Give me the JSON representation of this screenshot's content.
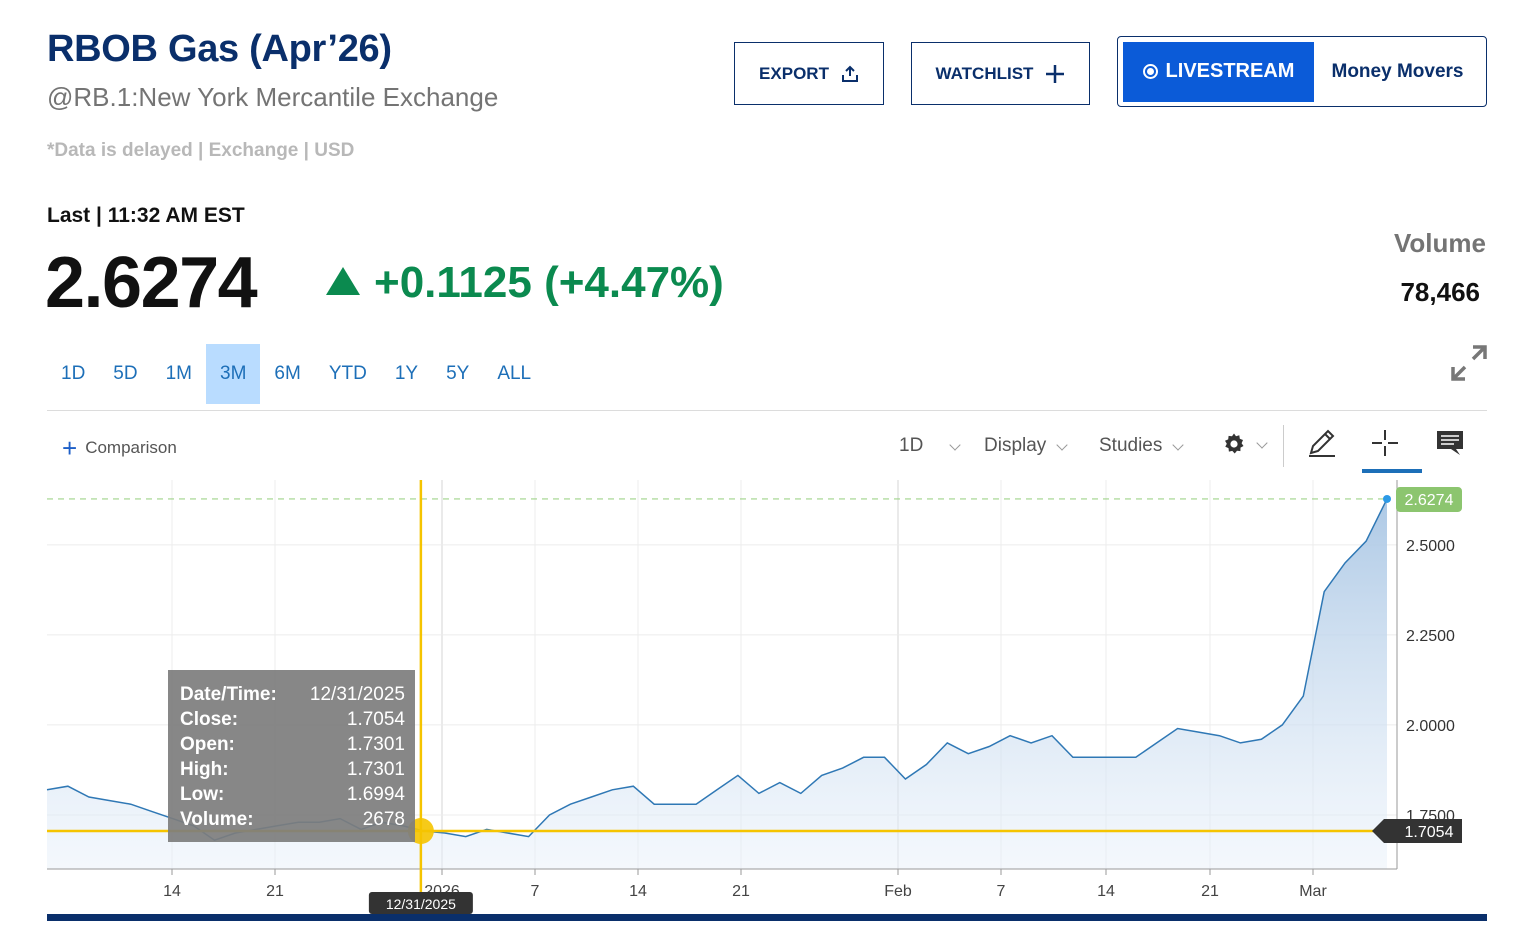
{
  "header": {
    "title": "RBOB Gas (Apr’26)",
    "subtitle": "@RB.1:New York Mercantile Exchange",
    "disclaimer": "*Data is delayed | Exchange | USD"
  },
  "actions": {
    "export_label": "EXPORT",
    "watchlist_label": "WATCHLIST",
    "livestream_label": "LIVESTREAM",
    "money_movers_label": "Money Movers"
  },
  "quote": {
    "last_label": "Last | 11:32 AM EST",
    "price": "2.6274",
    "change": "+0.1125 (+4.47%)",
    "volume_label": "Volume",
    "volume_value": "78,466",
    "up_color": "#0b8a4f"
  },
  "ranges": [
    "1D",
    "5D",
    "1M",
    "3M",
    "6M",
    "YTD",
    "1Y",
    "5Y",
    "ALL"
  ],
  "active_range": "3M",
  "chart_toolbar": {
    "comparison_label": "Comparison",
    "interval_label": "1D",
    "display_label": "Display",
    "studies_label": "Studies",
    "icons": [
      "gear-icon",
      "pencil-icon",
      "crosshair-icon",
      "comment-icon"
    ]
  },
  "chart_data": {
    "type": "area",
    "y_axis_ticks": [
      "2.5000",
      "2.2500",
      "2.0000",
      "1.7500"
    ],
    "y_range": [
      1.6,
      2.68
    ],
    "x_tick_labels": [
      "14",
      "21",
      "2026",
      "7",
      "14",
      "21",
      "Feb",
      "7",
      "14",
      "21",
      "Mar"
    ],
    "series": [
      {
        "values": [
          1.82,
          1.83,
          1.8,
          1.79,
          1.78,
          1.76,
          1.74,
          1.72,
          1.68,
          1.7,
          1.71,
          1.72,
          1.73,
          1.73,
          1.74,
          1.71,
          1.73,
          1.72,
          1.7054,
          1.7,
          1.69,
          1.71,
          1.7,
          1.69,
          1.75,
          1.78,
          1.8,
          1.82,
          1.83,
          1.78,
          1.78,
          1.78,
          1.82,
          1.86,
          1.81,
          1.84,
          1.81,
          1.86,
          1.88,
          1.91,
          1.91,
          1.85,
          1.89,
          1.95,
          1.92,
          1.94,
          1.97,
          1.95,
          1.97,
          1.91,
          1.91,
          1.91,
          1.91,
          1.95,
          1.99,
          1.98,
          1.97,
          1.95,
          1.96,
          2.0,
          2.08,
          2.37,
          2.45,
          2.51,
          2.6274
        ]
      }
    ],
    "last_value_label": "2.6274",
    "crosshair_value_label": "1.7054",
    "crosshair_date_label": "12/31/2025",
    "crosshair_index": 18,
    "line_color": "#2f78b5",
    "last_badge_color": "#8cc56f",
    "crosshair_color": "#f5c400",
    "tooltip": {
      "rows": [
        {
          "label": "Date/Time:",
          "value": "12/31/2025"
        },
        {
          "label": "Close:",
          "value": "1.7054"
        },
        {
          "label": "Open:",
          "value": "1.7301"
        },
        {
          "label": "High:",
          "value": "1.7301"
        },
        {
          "label": "Low:",
          "value": "1.6994"
        },
        {
          "label": "Volume:",
          "value": "2678"
        }
      ]
    }
  }
}
